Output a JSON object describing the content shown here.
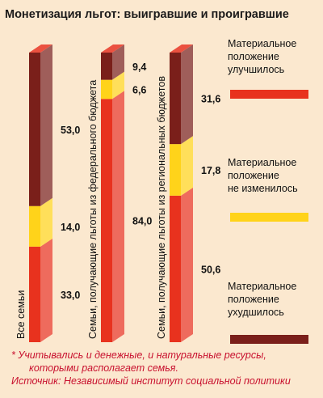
{
  "chart_data": {
    "type": "bar",
    "title": "Монетизация льгот: выигравшие и проигравшие",
    "categories": [
      "Все семьи",
      "Семьи, получающие льготы из федерального бюджета",
      "Семьи, получающие льготы из региональных бюджетов"
    ],
    "series": [
      {
        "name": "Материальное положение улучшилось",
        "values": [
          33.0,
          84.0,
          50.6
        ],
        "labels": [
          "33,0",
          "84,0",
          "50,6"
        ],
        "color": "#e8321e"
      },
      {
        "name": "Материальное положение не изменилось",
        "values": [
          14.0,
          6.6,
          17.8
        ],
        "labels": [
          "14,0",
          "6,6",
          "17,8"
        ],
        "color": "#ffd31a"
      },
      {
        "name": "Материальное положение ухудшилось",
        "values": [
          53.0,
          9.4,
          31.6
        ],
        "labels": [
          "53,0",
          "9,4",
          "31,6"
        ],
        "color": "#7a1f1a"
      }
    ],
    "stacked": true,
    "ylim": [
      0,
      100
    ],
    "legend_position": "right",
    "notes": [
      "* Учитывались и денежные, и натуральные ресурсы,",
      "которыми располагает семья.",
      "Источник: Независимый институт социальной политики"
    ]
  }
}
